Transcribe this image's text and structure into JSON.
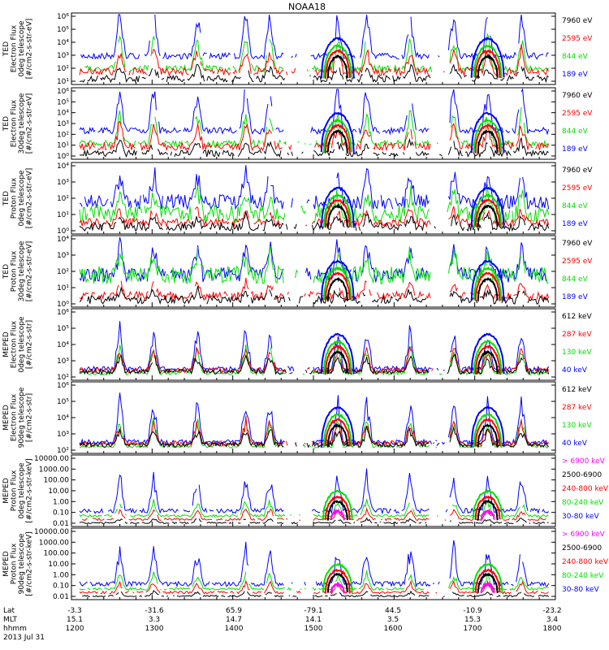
{
  "title": "NOAA18",
  "colors": {
    "black": "#000000",
    "red": "#ff0000",
    "green": "#00e000",
    "blue": "#0000ff",
    "magenta": "#ff00ff"
  },
  "panels": [
    {
      "ylabel": [
        "TED",
        "Electron Flux",
        "0deg telescope",
        "[#/cm2-s-str-eV]"
      ],
      "yscale": "log",
      "ylim": [
        1,
        1000000
      ],
      "yticks": [
        "10¹",
        "10²",
        "10³",
        "10⁴",
        "10⁵",
        "10⁶"
      ],
      "legend": [
        {
          "label": "7960 eV",
          "color": "#000000"
        },
        {
          "label": "2595 eV",
          "color": "#ff0000"
        },
        {
          "label": "844 eV",
          "color": "#00e000"
        },
        {
          "label": "189 eV",
          "color": "#0000ff"
        }
      ]
    },
    {
      "ylabel": [
        "TED",
        "Electron Flux",
        "30deg telescope",
        "[#/cm2-s-str-eV]"
      ],
      "yscale": "log",
      "ylim": [
        1,
        1000000
      ],
      "yticks": [
        "10⁰",
        "10¹",
        "10²",
        "10³",
        "10⁴",
        "10⁵",
        "10⁶"
      ],
      "legend": [
        {
          "label": "7960 eV",
          "color": "#000000"
        },
        {
          "label": "2595 eV",
          "color": "#ff0000"
        },
        {
          "label": "844 eV",
          "color": "#00e000"
        },
        {
          "label": "189 eV",
          "color": "#0000ff"
        }
      ]
    },
    {
      "ylabel": [
        "TED",
        "Proton Flux",
        "0deg telescope",
        "[#/cm2-s-str-eV]"
      ],
      "yscale": "log",
      "ylim": [
        1,
        10000
      ],
      "yticks": [
        "10⁰",
        "10¹",
        "10²",
        "10³",
        "10⁴"
      ],
      "legend": [
        {
          "label": "7960 eV",
          "color": "#000000"
        },
        {
          "label": "2595 eV",
          "color": "#ff0000"
        },
        {
          "label": "844 eV",
          "color": "#00e000"
        },
        {
          "label": "189 eV",
          "color": "#0000ff"
        }
      ]
    },
    {
      "ylabel": [
        "TED",
        "Proton Flux",
        "30deg telescope",
        "[#/cm2-s-str-eV]"
      ],
      "yscale": "log",
      "ylim": [
        1,
        10000
      ],
      "yticks": [
        "10⁰",
        "10¹",
        "10²",
        "10³",
        "10⁴"
      ],
      "legend": [
        {
          "label": "7960 eV",
          "color": "#000000"
        },
        {
          "label": "2595 eV",
          "color": "#ff0000"
        },
        {
          "label": "844 eV",
          "color": "#00e000"
        },
        {
          "label": "189 eV",
          "color": "#0000ff"
        }
      ]
    },
    {
      "ylabel": [
        "MEPED",
        "Electron Flux",
        "0deg telescope",
        "[#/cm2-s-str]"
      ],
      "yscale": "log",
      "ylim": [
        100,
        1000000
      ],
      "yticks": [
        "10²",
        "10³",
        "10⁴",
        "10⁵",
        "10⁶"
      ],
      "legend": [
        {
          "label": "612 keV",
          "color": "#000000"
        },
        {
          "label": "287 keV",
          "color": "#ff0000"
        },
        {
          "label": "130 keV",
          "color": "#00e000"
        },
        {
          "label": "40 keV",
          "color": "#0000ff"
        }
      ]
    },
    {
      "ylabel": [
        "MEPED",
        "Electron Flux",
        "90deg telescope",
        "[#/cm2-s-str]"
      ],
      "yscale": "log",
      "ylim": [
        100,
        1000000
      ],
      "yticks": [
        "10²",
        "10³",
        "10⁴",
        "10⁵",
        "10⁶"
      ],
      "legend": [
        {
          "label": "612 keV",
          "color": "#000000"
        },
        {
          "label": "287 keV",
          "color": "#ff0000"
        },
        {
          "label": "130 keV",
          "color": "#00e000"
        },
        {
          "label": "40 keV",
          "color": "#0000ff"
        }
      ]
    },
    {
      "ylabel": [
        "MEPED",
        "Proton Flux",
        "0deg telescope",
        "[#/cm2-s-str-keV]"
      ],
      "yscale": "log",
      "ylim": [
        0.01,
        10000
      ],
      "yticks": [
        "0.01",
        "0.10",
        "1.00",
        "10.00",
        "100.00",
        "1000.00",
        "10000.00"
      ],
      "legend": [
        {
          "label": "> 6900 keV",
          "color": "#ff00ff"
        },
        {
          "label": "2500-6900",
          "color": "#000000"
        },
        {
          "label": "240-800 keV",
          "color": "#ff0000"
        },
        {
          "label": "80-240 keV",
          "color": "#00e000"
        },
        {
          "label": "30-80 keV",
          "color": "#0000ff"
        }
      ]
    },
    {
      "ylabel": [
        "MEPED",
        "Proton Flux",
        "90deg telescope",
        "[#/cm2-s-str-keV]"
      ],
      "yscale": "log",
      "ylim": [
        0.01,
        10000
      ],
      "yticks": [
        "0.01",
        "0.10",
        "1.00",
        "10.00",
        "100.00",
        "1000.00",
        "10000.00"
      ],
      "legend": [
        {
          "label": "> 6900 keV",
          "color": "#ff00ff"
        },
        {
          "label": "2500-6900",
          "color": "#000000"
        },
        {
          "label": "240-800 keV",
          "color": "#ff0000"
        },
        {
          "label": "80-240 keV",
          "color": "#00e000"
        },
        {
          "label": "30-80 keV",
          "color": "#0000ff"
        }
      ]
    }
  ],
  "xaxis": {
    "row_labels": [
      "Lat",
      "MLT",
      "hhmm",
      "2013 Jul 31"
    ],
    "lat": [
      "-3.3",
      "-31.6",
      "65.9",
      "-79.1",
      "44.5",
      "-10.9",
      "-23.2"
    ],
    "mlt": [
      "15.1",
      "3.3",
      "14.7",
      "14.1",
      "3.5",
      "15.3",
      "3.4"
    ],
    "hhmm": [
      "1200",
      "1300",
      "1400",
      "1500",
      "1600",
      "1700",
      "1800"
    ]
  },
  "chart_data": {
    "type": "line",
    "title": "NOAA18",
    "x_range": [
      "1200",
      "1800"
    ],
    "x_ticks": [
      "1200",
      "1300",
      "1400",
      "1500",
      "1600",
      "1700",
      "1800"
    ],
    "pass_centers_hhmm": [
      "1220",
      "1245",
      "1320",
      "1340",
      "1430",
      "1505",
      "1525",
      "1555",
      "1630",
      "1700",
      "1720"
    ],
    "panels": [
      {
        "name": "TED Electron Flux 0deg",
        "ylim": [
          1,
          1000000
        ],
        "series": [
          "7960 eV",
          "2595 eV",
          "844 eV",
          "189 eV"
        ]
      },
      {
        "name": "TED Electron Flux 30deg",
        "ylim": [
          1,
          1000000
        ],
        "series": [
          "7960 eV",
          "2595 eV",
          "844 eV",
          "189 eV"
        ]
      },
      {
        "name": "TED Proton Flux 0deg",
        "ylim": [
          1,
          10000
        ],
        "series": [
          "7960 eV",
          "2595 eV",
          "844 eV",
          "189 eV"
        ]
      },
      {
        "name": "TED Proton Flux 30deg",
        "ylim": [
          1,
          10000
        ],
        "series": [
          "7960 eV",
          "2595 eV",
          "844 eV",
          "189 eV"
        ]
      },
      {
        "name": "MEPED Electron Flux 0deg",
        "ylim": [
          100,
          1000000
        ],
        "series": [
          "612 keV",
          "287 keV",
          "130 keV",
          "40 keV"
        ]
      },
      {
        "name": "MEPED Electron Flux 90deg",
        "ylim": [
          100,
          1000000
        ],
        "series": [
          "612 keV",
          "287 keV",
          "130 keV",
          "40 keV"
        ]
      },
      {
        "name": "MEPED Proton Flux 0deg",
        "ylim": [
          0.01,
          10000
        ],
        "series": [
          "> 6900 keV",
          "2500-6900",
          "240-800 keV",
          "80-240 keV",
          "30-80 keV"
        ]
      },
      {
        "name": "MEPED Proton Flux 90deg",
        "ylim": [
          0.01,
          10000
        ],
        "series": [
          "> 6900 keV",
          "2500-6900",
          "240-800 keV",
          "80-240 keV",
          "30-80 keV"
        ]
      }
    ]
  }
}
